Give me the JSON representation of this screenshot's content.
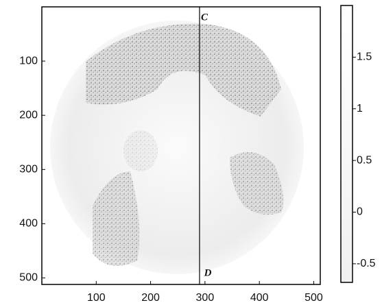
{
  "chart_data": {
    "type": "image",
    "xlim": [
      0,
      512
    ],
    "xticks": [
      100,
      200,
      300,
      400,
      500
    ],
    "ylim": [
      0,
      512
    ],
    "yticks": [
      100,
      200,
      300,
      400,
      500
    ],
    "y_inverted": true,
    "line_x": 290,
    "annotations": [
      {
        "text": "C"
      },
      {
        "text": "D"
      }
    ],
    "colorbar": {
      "clim": [
        -0.68,
        2.0
      ],
      "ticks": [
        -0.5,
        0,
        0.5,
        1,
        1.5
      ]
    }
  }
}
